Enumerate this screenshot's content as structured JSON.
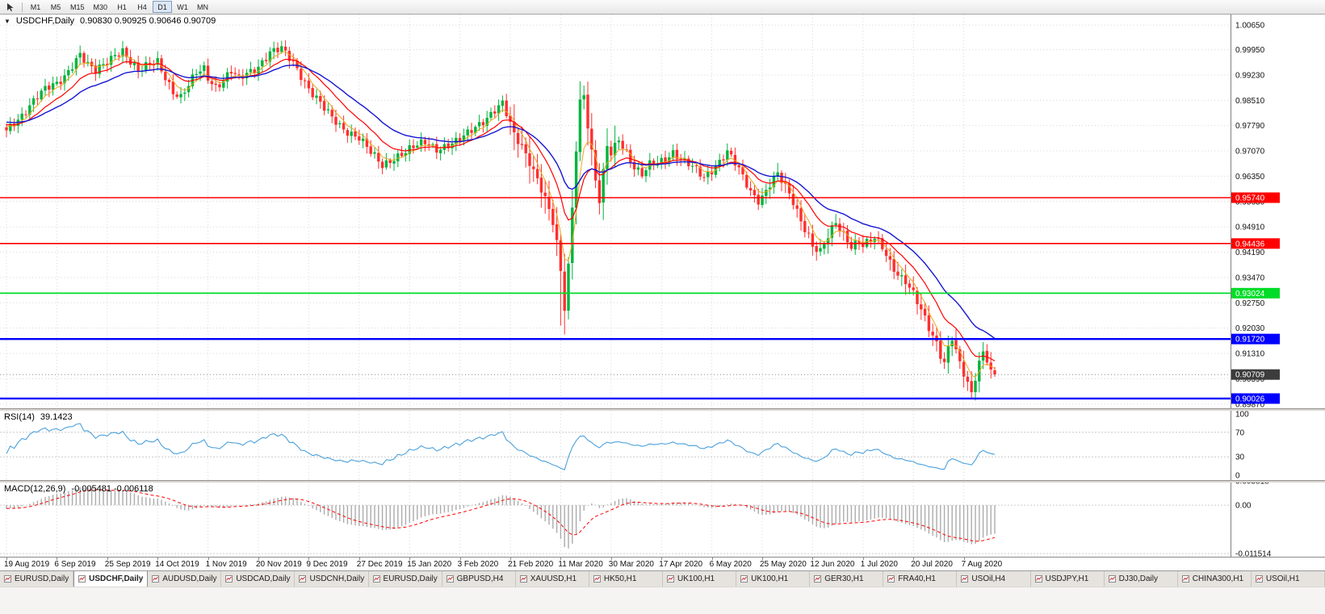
{
  "toolbar": {
    "timeframes": [
      "M1",
      "M5",
      "M15",
      "M30",
      "H1",
      "H4",
      "D1",
      "W1",
      "MN"
    ],
    "active_timeframe": "D1"
  },
  "chart_header": {
    "collapse_icon": "▼",
    "symbol": "USDCHF,Daily",
    "ohlc": "0.90830 0.90925 0.90646 0.90709"
  },
  "price_axis": {
    "labels": [
      "1.00650",
      "0.99950",
      "0.99230",
      "0.98510",
      "0.97790",
      "0.97070",
      "0.96350",
      "0.95630",
      "0.94910",
      "0.94190",
      "0.93470",
      "0.92750",
      "0.92030",
      "0.91310",
      "0.90590",
      "0.89870"
    ]
  },
  "rsi_panel": {
    "title": "RSI(14)",
    "value": "39.1423",
    "period": 14,
    "axis_labels": [
      "100",
      "70",
      "30",
      "0"
    ],
    "levels_dotted": [
      70,
      30
    ]
  },
  "macd_panel": {
    "title": "MACD(12,26,9)",
    "values": "-0.005481 -0.006118",
    "axis_labels": [
      {
        "text": "0.005818",
        "value": 0.005818
      },
      {
        "text": "0.00",
        "value": 0
      },
      {
        "text": "-0.011514",
        "value": -0.011514
      }
    ]
  },
  "time_axis": [
    "19 Aug 2019",
    "6 Sep 2019",
    "25 Sep 2019",
    "14 Oct 2019",
    "1 Nov 2019",
    "20 Nov 2019",
    "9 Dec 2019",
    "27 Dec 2019",
    "15 Jan 2020",
    "3 Feb 2020",
    "21 Feb 2020",
    "11 Mar 2020",
    "30 Mar 2020",
    "17 Apr 2020",
    "6 May 2020",
    "25 May 2020",
    "12 Jun 2020",
    "1 Jul 2020",
    "20 Jul 2020",
    "7 Aug 2020"
  ],
  "tabs": {
    "active_index": 1,
    "items": [
      "EURUSD,Daily",
      "USDCHF,Daily",
      "AUDUSD,Daily",
      "USDCAD,Daily",
      "USDCNH,Daily",
      "EURUSD,Daily",
      "GBPUSD,H4",
      "XAUUSD,H1",
      "HK50,H1",
      "UK100,H1",
      "UK100,H1",
      "GER30,H1",
      "FRA40,H1",
      "USOil,H4",
      "USDJPY,H1",
      "DJ30,Daily",
      "CHINA300,H1",
      "USOil,H1"
    ],
    "active_label": "USDCHF,Daily"
  },
  "colors": {
    "bull": "#00B43C",
    "bear": "#FF2E2E",
    "grid": "#D8D8D8",
    "rsi": "#4AA0DC",
    "macd_hist": "#ABABAB",
    "macd_signal": "#FF0000",
    "tag_current": "#3C3C3C",
    "axis_text": "#111111"
  },
  "chart_data": {
    "type": "candlestick",
    "symbol": "USDCHF",
    "timeframe": "Daily",
    "candle_count": 256,
    "view_high": 1.0095,
    "view_low": 0.8975,
    "grid_step": 0.0072,
    "last_candle": {
      "o": 0.9083,
      "h": 0.90925,
      "l": 0.90646,
      "c": 0.90709
    },
    "current_price": {
      "value": 0.90709,
      "text": "0.90709"
    },
    "hlines": [
      {
        "value": 0.9574,
        "text": "0.95740",
        "color": "#FF0000",
        "width": 1.6
      },
      {
        "value": 0.94436,
        "text": "0.94436",
        "color": "#FF0000",
        "width": 1.6
      },
      {
        "value": 0.93024,
        "text": "0.93024",
        "color": "#00DC28",
        "width": 1.8
      },
      {
        "value": 0.9172,
        "text": "0.91720",
        "color": "#0000FF",
        "width": 2.4
      },
      {
        "value": 0.90026,
        "text": "0.90026",
        "color": "#0000FF",
        "width": 2.4
      }
    ],
    "moving_averages": [
      {
        "period": 5,
        "color": "#E8A91E",
        "width": 1
      },
      {
        "period": 13,
        "color": "#FF0000",
        "width": 1.2
      },
      {
        "period": 26,
        "color": "#1515D2",
        "width": 1.4
      }
    ],
    "macd": {
      "fast": 12,
      "slow": 26,
      "signal": 9
    },
    "prehistory": {
      "count": 60,
      "start": 0.9845,
      "end": 0.9775
    },
    "volatility_zones": [
      [
        130,
        157,
        2.4
      ],
      [
        195,
        216,
        1.3
      ],
      [
        228,
        255,
        1.5
      ]
    ],
    "wick_overrides": {
      "high": {
        "148": 0.9905,
        "149": 0.9893
      },
      "low": {
        "143": 0.921,
        "144": 0.9185,
        "249": 0.90026
      }
    },
    "anchors": [
      [
        0,
        0.976
      ],
      [
        2,
        0.9785
      ],
      [
        4,
        0.981
      ],
      [
        6,
        0.984
      ],
      [
        8,
        0.9865
      ],
      [
        10,
        0.988
      ],
      [
        13,
        0.9895
      ],
      [
        15,
        0.992
      ],
      [
        17,
        0.9955
      ],
      [
        19,
        0.9985
      ],
      [
        21,
        0.995
      ],
      [
        23,
        0.993
      ],
      [
        26,
        0.996
      ],
      [
        28,
        0.9985
      ],
      [
        30,
        0.9995
      ],
      [
        32,
        0.996
      ],
      [
        34,
        0.993
      ],
      [
        36,
        0.9945
      ],
      [
        39,
        0.9965
      ],
      [
        41,
        0.992
      ],
      [
        43,
        0.9875
      ],
      [
        45,
        0.9855
      ],
      [
        47,
        0.989
      ],
      [
        49,
        0.993
      ],
      [
        51,
        0.9945
      ],
      [
        52,
        0.992
      ],
      [
        54,
        0.989
      ],
      [
        56,
        0.9905
      ],
      [
        58,
        0.993
      ],
      [
        60,
        0.991
      ],
      [
        62,
        0.993
      ],
      [
        65,
        0.995
      ],
      [
        68,
        0.9985
      ],
      [
        71,
        0.9995
      ],
      [
        74,
        0.996
      ],
      [
        76,
        0.9925
      ],
      [
        78,
        0.9885
      ],
      [
        80,
        0.9855
      ],
      [
        82,
        0.9825
      ],
      [
        84,
        0.98
      ],
      [
        86,
        0.978
      ],
      [
        88,
        0.9765
      ],
      [
        91,
        0.9745
      ],
      [
        94,
        0.97
      ],
      [
        97,
        0.9665
      ],
      [
        100,
        0.969
      ],
      [
        104,
        0.971
      ],
      [
        108,
        0.973
      ],
      [
        111,
        0.9715
      ],
      [
        114,
        0.9725
      ],
      [
        117,
        0.9735
      ],
      [
        120,
        0.9765
      ],
      [
        123,
        0.9795
      ],
      [
        126,
        0.9825
      ],
      [
        128,
        0.984
      ],
      [
        130,
        0.978
      ],
      [
        131,
        0.975
      ],
      [
        133,
        0.972
      ],
      [
        135,
        0.968
      ],
      [
        137,
        0.963
      ],
      [
        139,
        0.957
      ],
      [
        141,
        0.95
      ],
      [
        142,
        0.944
      ],
      [
        143,
        0.936
      ],
      [
        144,
        0.926
      ],
      [
        145,
        0.938
      ],
      [
        146,
        0.955
      ],
      [
        147,
        0.972
      ],
      [
        148,
        0.985
      ],
      [
        149,
        0.987
      ],
      [
        150,
        0.978
      ],
      [
        151,
        0.97
      ],
      [
        152,
        0.962
      ],
      [
        153,
        0.956
      ],
      [
        154,
        0.964
      ],
      [
        155,
        0.972
      ],
      [
        156,
        0.97
      ],
      [
        158,
        0.9745
      ],
      [
        160,
        0.9705
      ],
      [
        162,
        0.966
      ],
      [
        164,
        0.9635
      ],
      [
        166,
        0.9665
      ],
      [
        169,
        0.968
      ],
      [
        172,
        0.9705
      ],
      [
        175,
        0.9675
      ],
      [
        178,
        0.965
      ],
      [
        180,
        0.963
      ],
      [
        182,
        0.9655
      ],
      [
        184,
        0.968
      ],
      [
        186,
        0.9705
      ],
      [
        188,
        0.967
      ],
      [
        190,
        0.963
      ],
      [
        192,
        0.959
      ],
      [
        194,
        0.957
      ],
      [
        195,
        0.958
      ],
      [
        197,
        0.9615
      ],
      [
        199,
        0.964
      ],
      [
        201,
        0.96
      ],
      [
        203,
        0.956
      ],
      [
        205,
        0.951
      ],
      [
        207,
        0.947
      ],
      [
        208,
        0.944
      ],
      [
        210,
        0.942
      ],
      [
        212,
        0.946
      ],
      [
        214,
        0.95
      ],
      [
        216,
        0.947
      ],
      [
        218,
        0.944
      ],
      [
        220,
        0.9455
      ],
      [
        221,
        0.944
      ],
      [
        224,
        0.9455
      ],
      [
        226,
        0.943
      ],
      [
        228,
        0.939
      ],
      [
        230,
        0.936
      ],
      [
        232,
        0.934
      ],
      [
        234,
        0.93
      ],
      [
        236,
        0.925
      ],
      [
        238,
        0.92
      ],
      [
        240,
        0.916
      ],
      [
        241,
        0.913
      ],
      [
        242,
        0.911
      ],
      [
        243,
        0.915
      ],
      [
        244,
        0.918
      ],
      [
        245,
        0.914
      ],
      [
        246,
        0.91
      ],
      [
        247,
        0.907
      ],
      [
        248,
        0.904
      ],
      [
        249,
        0.901
      ],
      [
        250,
        0.906
      ],
      [
        251,
        0.9105
      ],
      [
        252,
        0.9135
      ],
      [
        253,
        0.912
      ],
      [
        254,
        0.9085
      ],
      [
        255,
        0.90709
      ]
    ]
  }
}
